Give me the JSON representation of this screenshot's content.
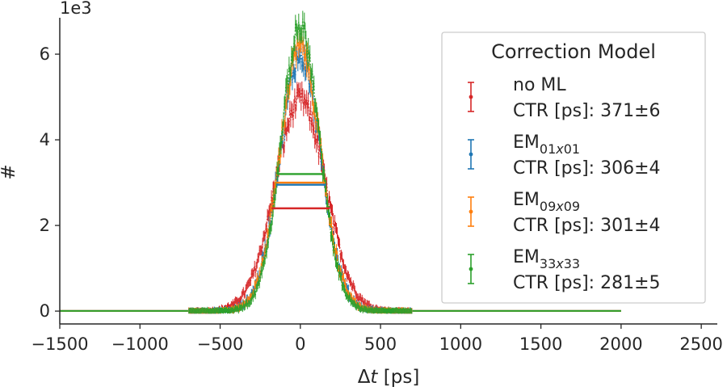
{
  "chart_data": {
    "type": "scatter",
    "title": "",
    "xlabel_prefix": "Δ",
    "xlabel_var": "t",
    "xlabel_unit": " [ps]",
    "ylabel": "#",
    "y_scale_label": "1e3",
    "xlim": [
      -1500,
      2600
    ],
    "ylim": [
      -0.3,
      6.85
    ],
    "xticks": [
      -1500,
      -1000,
      -500,
      0,
      500,
      1000,
      1500,
      2000,
      2500
    ],
    "xtick_labels": [
      "−1500",
      "−1000",
      "−500",
      "0",
      "500",
      "1000",
      "1500",
      "2000",
      "2500"
    ],
    "yticks": [
      0,
      2,
      4,
      6
    ],
    "ytick_labels": [
      "0",
      "2",
      "4",
      "6"
    ],
    "grid": false,
    "legend": {
      "title": "Correction Model",
      "placement": "upper-right",
      "entries": [
        {
          "name_base": "no ML",
          "name_sub": "",
          "ctr_text": "CTR [ps]: 371±6"
        },
        {
          "name_base": "EM",
          "name_sub": "01x01",
          "ctr_text": "CTR [ps]: 306±4"
        },
        {
          "name_base": "EM",
          "name_sub": "09x09",
          "ctr_text": "CTR [ps]: 301±4"
        },
        {
          "name_base": "EM",
          "name_sub": "33x33",
          "ctr_text": "CTR [ps]: 281±5"
        }
      ]
    },
    "x_range": [
      -1500,
      2000
    ],
    "series": [
      {
        "color": "#d62728",
        "peak": 4.8,
        "sigma": 158,
        "fwhm_x": [
          -180,
          185
        ],
        "fwhm_y": 2.4
      },
      {
        "color": "#1f77b4",
        "peak": 5.8,
        "sigma": 130,
        "fwhm_x": [
          -150,
          160
        ],
        "fwhm_y": 2.95
      },
      {
        "color": "#ff7f0e",
        "peak": 6.0,
        "sigma": 128,
        "fwhm_x": [
          -150,
          155
        ],
        "fwhm_y": 3.0
      },
      {
        "color": "#2ca02c",
        "peak": 6.45,
        "sigma": 120,
        "fwhm_x": [
          -140,
          145
        ],
        "fwhm_y": 3.2
      }
    ]
  }
}
